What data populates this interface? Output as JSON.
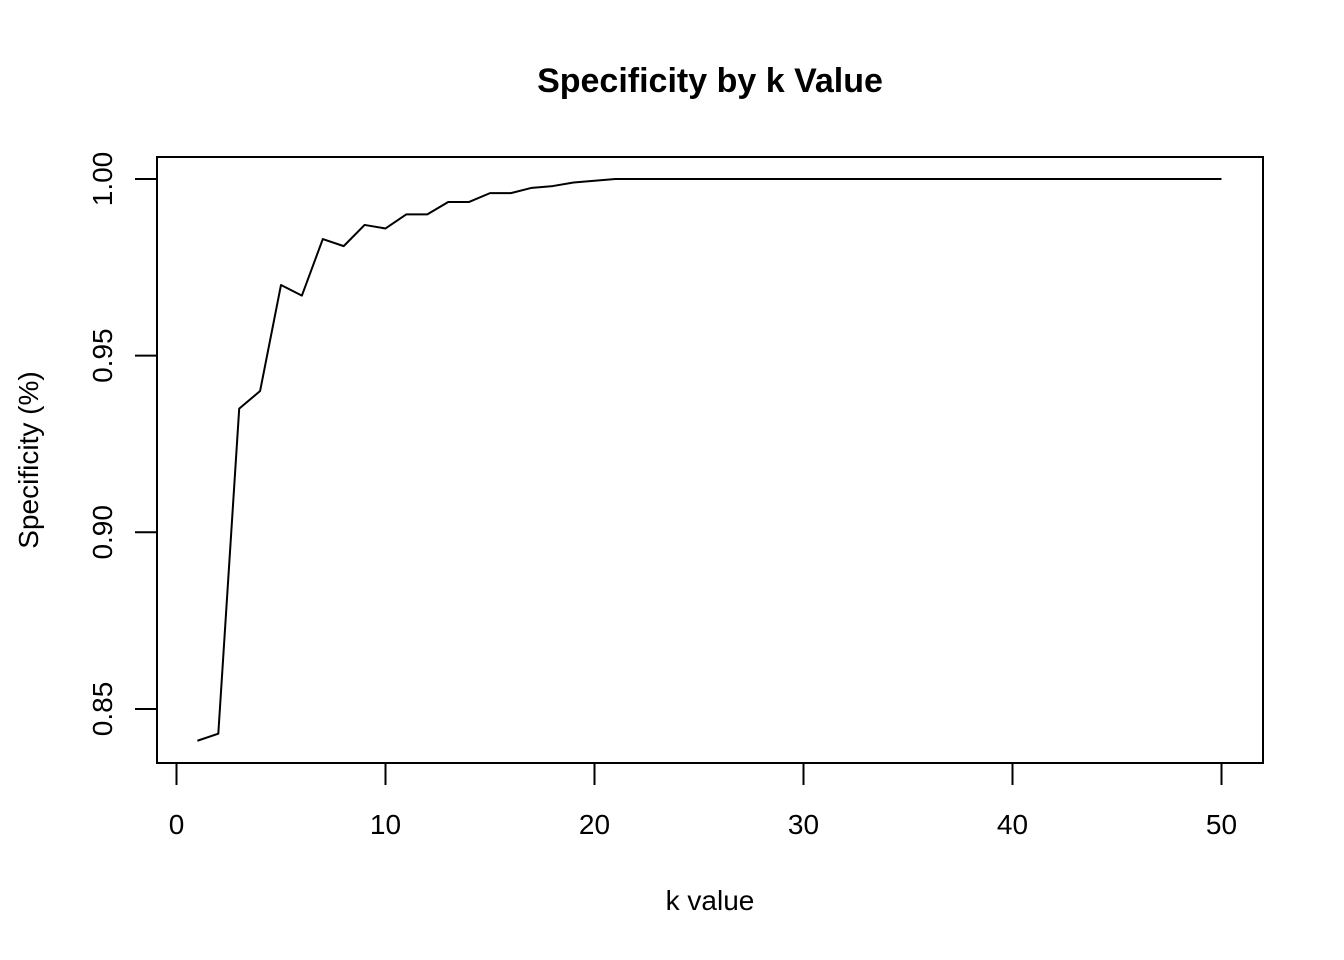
{
  "chart_data": {
    "type": "line",
    "title": "Specificity by k Value",
    "xlabel": "k value",
    "ylabel": "Specificity (%)",
    "xlim": [
      0,
      50
    ],
    "ylim": [
      0.84,
      1.0
    ],
    "x_ticks": [
      "0",
      "10",
      "20",
      "30",
      "40",
      "50"
    ],
    "y_ticks": [
      "0.85",
      "0.90",
      "0.95",
      "1.00"
    ],
    "grid": false,
    "legend": "none",
    "line_color": "#000000",
    "series": [
      {
        "x": [
          1,
          2,
          3,
          4,
          5,
          6,
          7,
          8,
          9,
          10,
          11,
          12,
          13,
          14,
          15,
          16,
          17,
          18,
          19,
          20,
          21,
          22,
          23,
          24,
          25,
          26,
          27,
          28,
          29,
          30,
          31,
          32,
          33,
          34,
          35,
          36,
          37,
          38,
          39,
          40,
          41,
          42,
          43,
          44,
          45,
          46,
          47,
          48,
          49,
          50
        ],
        "values": [
          0.841,
          0.843,
          0.935,
          0.94,
          0.97,
          0.967,
          0.983,
          0.981,
          0.987,
          0.986,
          0.99,
          0.99,
          0.9935,
          0.9935,
          0.996,
          0.996,
          0.9975,
          0.998,
          0.999,
          0.9995,
          1.0,
          1.0,
          1.0,
          1.0,
          1.0,
          1.0,
          1.0,
          1.0,
          1.0,
          1.0,
          1.0,
          1.0,
          1.0,
          1.0,
          1.0,
          1.0,
          1.0,
          1.0,
          1.0,
          1.0,
          1.0,
          1.0,
          1.0,
          1.0,
          1.0,
          1.0,
          1.0,
          1.0,
          1.0,
          1.0
        ]
      }
    ]
  }
}
